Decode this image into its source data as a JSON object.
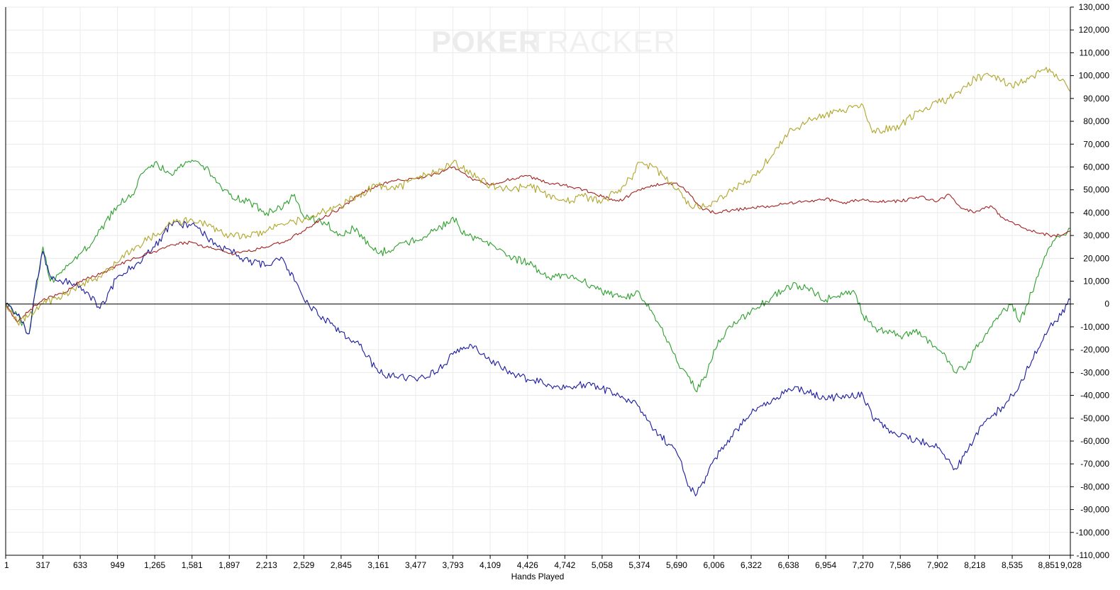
{
  "watermark": {
    "part1": "POKER",
    "part2": "TRACKER"
  },
  "chart_data": {
    "type": "line",
    "title": "",
    "xlabel": "Hands Played",
    "ylabel": "",
    "xlim": [
      1,
      9028
    ],
    "ylim": [
      -110000,
      130000
    ],
    "grid": true,
    "legend": "none",
    "x_ticks": [
      1,
      317,
      633,
      949,
      1265,
      1581,
      1897,
      2213,
      2529,
      2845,
      3161,
      3477,
      3793,
      4109,
      4426,
      4742,
      5058,
      5374,
      5690,
      6006,
      6322,
      6638,
      6954,
      7270,
      7586,
      7902,
      8218,
      8535,
      8851,
      9028
    ],
    "x_tick_labels": [
      "1",
      "317",
      "633",
      "949",
      "1,265",
      "1,581",
      "1,897",
      "2,213",
      "2,529",
      "2,845",
      "3,161",
      "3,477",
      "3,793",
      "4,109",
      "4,426",
      "4,742",
      "5,058",
      "5,374",
      "5,690",
      "6,006",
      "6,322",
      "6,638",
      "6,954",
      "7,270",
      "7,586",
      "7,902",
      "8,218",
      "8,535",
      "8,851",
      "9,028"
    ],
    "y_ticks": [
      130000,
      120000,
      110000,
      100000,
      90000,
      80000,
      70000,
      60000,
      50000,
      40000,
      30000,
      20000,
      10000,
      0,
      -10000,
      -20000,
      -30000,
      -40000,
      -50000,
      -60000,
      -70000,
      -80000,
      -90000,
      -100000,
      -110000
    ],
    "y_tick_labels": [
      "130,000",
      "120,000",
      "110,000",
      "100,000",
      "90,000",
      "80,000",
      "70,000",
      "60,000",
      "50,000",
      "40,000",
      "30,000",
      "20,000",
      "10,000",
      "0",
      "-10,000",
      "-20,000",
      "-30,000",
      "-40,000",
      "-50,000",
      "-60,000",
      "-70,000",
      "-80,000",
      "-90,000",
      "-100,000",
      "-110,000"
    ],
    "series": [
      {
        "color": "#2ca02c",
        "x": [
          1,
          100,
          200,
          250,
          317,
          380,
          500,
          633,
          750,
          949,
          1100,
          1150,
          1265,
          1400,
          1500,
          1581,
          1700,
          1800,
          1897,
          2050,
          2213,
          2350,
          2450,
          2529,
          2700,
          2845,
          2950,
          3161,
          3300,
          3477,
          3650,
          3793,
          3900,
          4109,
          4300,
          4426,
          4600,
          4742,
          4900,
          5058,
          5250,
          5374,
          5500,
          5690,
          5800,
          5850,
          5950,
          6006,
          6150,
          6322,
          6500,
          6638,
          6800,
          6954,
          7100,
          7200,
          7270,
          7350,
          7586,
          7750,
          7902,
          8000,
          8050,
          8150,
          8218,
          8350,
          8450,
          8535,
          8600,
          8700,
          8851,
          8950,
          9028
        ],
        "y": [
          0,
          -5000,
          -13000,
          5000,
          25000,
          10000,
          15000,
          22000,
          28000,
          43000,
          50000,
          57000,
          62000,
          57000,
          60000,
          63000,
          60000,
          53000,
          48000,
          45000,
          40000,
          42000,
          48000,
          38000,
          36000,
          30000,
          33000,
          22000,
          25000,
          28000,
          32000,
          38000,
          30000,
          27000,
          20000,
          18000,
          12000,
          13000,
          10000,
          5000,
          3000,
          5000,
          -5000,
          -25000,
          -32000,
          -38000,
          -30000,
          -20000,
          -10000,
          -3000,
          3000,
          8000,
          7000,
          2000,
          4000,
          5000,
          -5000,
          -10000,
          -14000,
          -12000,
          -20000,
          -25000,
          -30000,
          -27000,
          -20000,
          -10000,
          -3000,
          0,
          -8000,
          5000,
          25000,
          30000,
          33000
        ]
      },
      {
        "color": "#1a1aa0",
        "x": [
          1,
          100,
          200,
          250,
          317,
          380,
          500,
          633,
          700,
          800,
          949,
          1100,
          1265,
          1400,
          1581,
          1700,
          1800,
          1897,
          2000,
          2100,
          2213,
          2350,
          2450,
          2529,
          2650,
          2845,
          3000,
          3161,
          3300,
          3477,
          3650,
          3793,
          3950,
          4109,
          4300,
          4426,
          4600,
          4742,
          4900,
          5058,
          5200,
          5374,
          5500,
          5690,
          5800,
          5850,
          5950,
          6006,
          6150,
          6322,
          6500,
          6638,
          6800,
          6954,
          7100,
          7270,
          7350,
          7586,
          7750,
          7902,
          8000,
          8050,
          8150,
          8218,
          8350,
          8450,
          8535,
          8600,
          8700,
          8851,
          8950,
          9028
        ],
        "y": [
          0,
          -5000,
          -13000,
          5000,
          23000,
          12000,
          10000,
          8000,
          5000,
          -2000,
          12000,
          17000,
          25000,
          35000,
          35000,
          30000,
          25000,
          24000,
          20000,
          18000,
          17000,
          20000,
          10000,
          2000,
          -5000,
          -12000,
          -18000,
          -30000,
          -32000,
          -33000,
          -30000,
          -22000,
          -18000,
          -25000,
          -30000,
          -33000,
          -35000,
          -37000,
          -35000,
          -37000,
          -40000,
          -45000,
          -55000,
          -65000,
          -80000,
          -84000,
          -75000,
          -68000,
          -58000,
          -48000,
          -42000,
          -37000,
          -38000,
          -42000,
          -40000,
          -40000,
          -50000,
          -58000,
          -60000,
          -63000,
          -68000,
          -72000,
          -65000,
          -58000,
          -50000,
          -45000,
          -40000,
          -35000,
          -25000,
          -10000,
          -5000,
          2000
        ]
      },
      {
        "color": "#a52020",
        "x": [
          1,
          100,
          200,
          317,
          500,
          633,
          800,
          949,
          1100,
          1265,
          1400,
          1581,
          1700,
          1800,
          1897,
          2050,
          2213,
          2350,
          2529,
          2700,
          2845,
          3000,
          3161,
          3300,
          3477,
          3650,
          3793,
          3950,
          4109,
          4300,
          4426,
          4600,
          4742,
          4900,
          5058,
          5200,
          5374,
          5500,
          5690,
          5800,
          5900,
          6006,
          6150,
          6322,
          6500,
          6638,
          6800,
          6954,
          7100,
          7270,
          7350,
          7586,
          7750,
          7902,
          8000,
          8100,
          8218,
          8350,
          8450,
          8535,
          8650,
          8851,
          8950,
          9028
        ],
        "y": [
          0,
          -8000,
          -3000,
          2000,
          5000,
          10000,
          13000,
          17000,
          20000,
          23000,
          26000,
          27000,
          25000,
          24000,
          22000,
          23000,
          25000,
          27000,
          32000,
          38000,
          42000,
          48000,
          52000,
          54000,
          55000,
          57000,
          60000,
          55000,
          52000,
          55000,
          56000,
          53000,
          52000,
          50000,
          47000,
          45000,
          50000,
          52000,
          53000,
          48000,
          42000,
          40000,
          41000,
          42000,
          43000,
          44000,
          45000,
          46000,
          44000,
          46000,
          45000,
          45000,
          47000,
          45000,
          48000,
          42000,
          40000,
          43000,
          38000,
          36000,
          33000,
          30000,
          30000,
          32000
        ]
      },
      {
        "color": "#b0a62a",
        "x": [
          1,
          100,
          200,
          317,
          450,
          633,
          800,
          949,
          1100,
          1265,
          1400,
          1581,
          1700,
          1800,
          1897,
          2050,
          2213,
          2350,
          2529,
          2650,
          2845,
          3000,
          3161,
          3300,
          3477,
          3650,
          3793,
          3950,
          4109,
          4300,
          4426,
          4600,
          4742,
          4900,
          5058,
          5200,
          5300,
          5374,
          5500,
          5690,
          5800,
          5900,
          6006,
          6150,
          6322,
          6500,
          6638,
          6800,
          6954,
          7100,
          7270,
          7350,
          7586,
          7750,
          7902,
          8000,
          8150,
          8218,
          8350,
          8450,
          8535,
          8600,
          8700,
          8851,
          8950,
          9028
        ],
        "y": [
          0,
          -8000,
          -5000,
          0,
          3000,
          8000,
          12000,
          18000,
          25000,
          30000,
          35000,
          37000,
          35000,
          32000,
          30000,
          30000,
          32000,
          35000,
          37000,
          40000,
          43000,
          48000,
          52000,
          50000,
          55000,
          58000,
          62000,
          57000,
          52000,
          50000,
          52000,
          48000,
          45000,
          47000,
          45000,
          50000,
          55000,
          62000,
          60000,
          50000,
          43000,
          42000,
          45000,
          50000,
          55000,
          65000,
          75000,
          80000,
          83000,
          85000,
          87000,
          75000,
          78000,
          85000,
          88000,
          90000,
          95000,
          99000,
          100000,
          98000,
          95000,
          97000,
          100000,
          103000,
          98000,
          93000
        ]
      }
    ]
  }
}
